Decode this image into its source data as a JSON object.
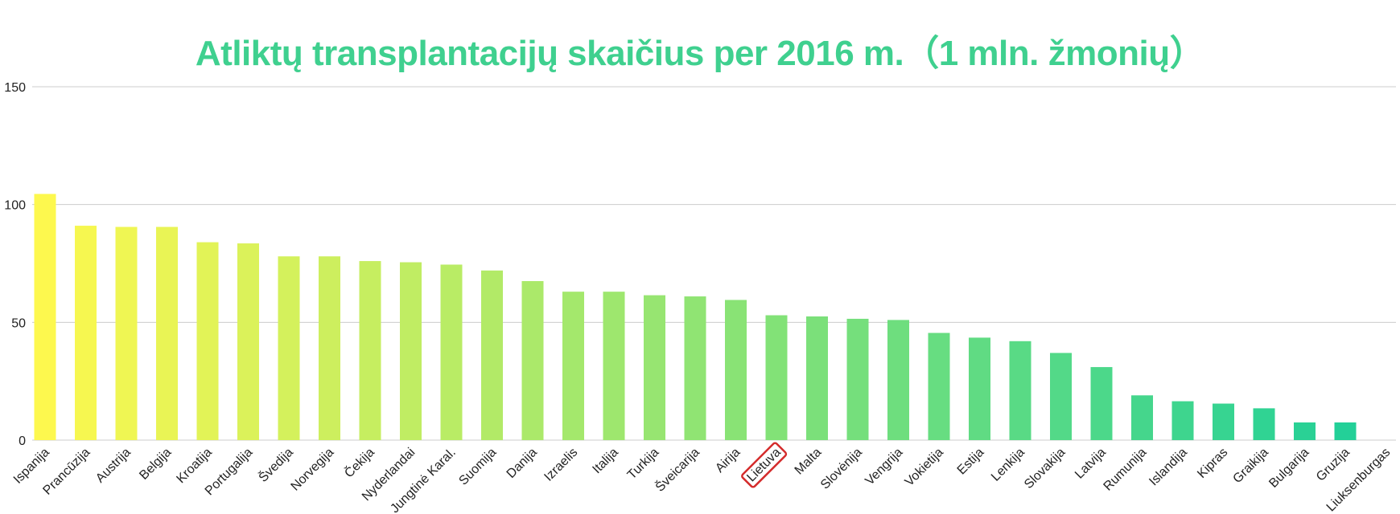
{
  "chart_data": {
    "type": "bar",
    "title": "Atliktų transplantacijų skaičius per 2016 m.（1 mln. žmonių）",
    "xlabel": "",
    "ylabel": "",
    "ylim": [
      0,
      150
    ],
    "yticks": [
      0,
      50,
      100,
      150
    ],
    "grid": true,
    "categories": [
      "Ispanija",
      "Prancūzija",
      "Austrija",
      "Belgija",
      "Kroatija",
      "Portugalija",
      "Švedija",
      "Norvegija",
      "Čekija",
      "Nyderlandai",
      "Jungtinė Karal.",
      "Suomija",
      "Danija",
      "Izraelis",
      "Italija",
      "Turkija",
      "Šveicarija",
      "Airija",
      "Lietuva",
      "Malta",
      "Slovėnija",
      "Vengrija",
      "Vokietija",
      "Estija",
      "Lenkija",
      "Slovakija",
      "Latvija",
      "Rumunija",
      "Islandija",
      "Kipras",
      "Graikija",
      "Bulgarija",
      "Gruzija",
      "Liuksenburgas"
    ],
    "values": [
      104.5,
      91,
      90.5,
      90.5,
      84,
      83.5,
      78,
      78,
      76,
      75.5,
      74.5,
      72,
      67.5,
      63,
      63,
      61.5,
      61,
      59.5,
      53,
      52.5,
      51.5,
      51,
      45.5,
      43.5,
      42,
      37,
      31,
      19,
      16.5,
      15.5,
      13.5,
      7.5,
      7.5,
      0
    ],
    "highlighted_category": "Lietuva",
    "colors": {
      "title": "#3fd08f",
      "bar_start": "#fdf84e",
      "bar_end": "#1ccf9a",
      "grid": "#cccccc",
      "highlight_box": "#d42b2b"
    }
  }
}
